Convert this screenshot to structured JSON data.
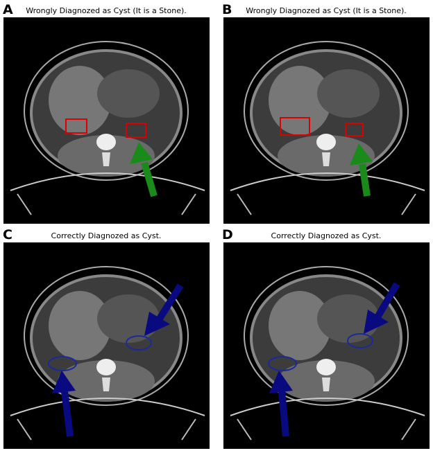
{
  "panels": [
    {
      "label": "A",
      "title": "Wrongly Diagnozed as Cyst (It is a Stone)."
    },
    {
      "label": "B",
      "title": "Wrongly Diagnozed as Cyst (It is a Stone)."
    },
    {
      "label": "C",
      "title": "Correctly Diagnozed as Cyst."
    },
    {
      "label": "D",
      "title": "Correctly Diagnozed as Cyst."
    }
  ]
}
